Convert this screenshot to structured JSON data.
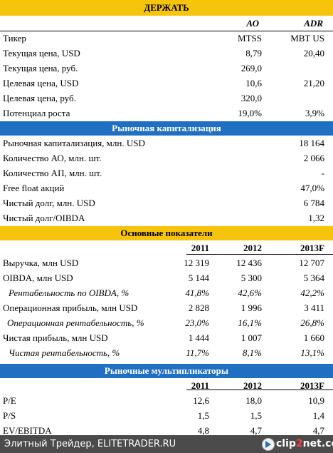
{
  "hold": {
    "title": "ДЕРЖАТЬ",
    "col_ao": "АО",
    "col_adr": "ADR",
    "rows": [
      {
        "label": "Тикер",
        "ao": "MTSS",
        "adr": "MBT US"
      },
      {
        "label": "Текущая цена, USD",
        "ao": "8,79",
        "adr": "20,40"
      },
      {
        "label": "Текущая цена, руб.",
        "ao": "269,0",
        "adr": ""
      },
      {
        "label": "Целевая цена, USD",
        "ao": "10,6",
        "adr": "21,20"
      },
      {
        "label": "Целевая цена, руб.",
        "ao": "320,0",
        "adr": ""
      },
      {
        "label": "Потенциал роста",
        "ao": "19,0%",
        "adr": "3,9%"
      }
    ]
  },
  "market_cap": {
    "title": "Рыночная капитализация",
    "rows": [
      {
        "label": "Рыночная капитализация, млн. USD",
        "value": "18 164"
      },
      {
        "label": "Количество АО, млн. шт.",
        "value": "2 066"
      },
      {
        "label": "Количество АП, млн. шт.",
        "value": "-"
      },
      {
        "label": "Free float акций",
        "value": "47,0%"
      },
      {
        "label": "Чистый долг, млн. USD",
        "value": "6 784"
      },
      {
        "label": "Чистый долг/OIBDA",
        "value": "1,32"
      }
    ]
  },
  "key_metrics": {
    "title": "Основные показатели",
    "years": [
      "2011",
      "2012",
      "2013F"
    ],
    "rows": [
      {
        "label": "Выручка, млн USD",
        "v": [
          "12 319",
          "12 436",
          "12 707"
        ]
      },
      {
        "label": "OIBDA, млн USD",
        "v": [
          "5 144",
          "5 300",
          "5 364"
        ]
      },
      {
        "label": "Рентабельность по OIBDA, %",
        "v": [
          "41,8%",
          "42,6%",
          "42,2%"
        ]
      },
      {
        "label": "Операционная прибыль, млн USD",
        "v": [
          "2 828",
          "1 996",
          "3 411"
        ]
      },
      {
        "label": "Операционная рентабельность, %",
        "v": [
          "23,0%",
          "16,1%",
          "26,8%"
        ]
      },
      {
        "label": "Чистая прибыль, млн USD",
        "v": [
          "1 444",
          "1 007",
          "1 660"
        ]
      },
      {
        "label": "Чистая рентабельность, %",
        "v": [
          "11,7%",
          "8,1%",
          "13,1%"
        ]
      }
    ]
  },
  "multiples": {
    "title": "Рыночные мультипликаторы",
    "years": [
      "2011",
      "2012",
      "2013F"
    ],
    "rows": [
      {
        "label": "P/E",
        "v": [
          "12,6",
          "18,0",
          "10,9"
        ]
      },
      {
        "label": "P/S",
        "v": [
          "1,5",
          "1,5",
          "1,4"
        ]
      },
      {
        "label": "EV/EBITDA",
        "v": [
          "4,8",
          "4,7",
          "4,7"
        ]
      }
    ]
  },
  "footer": {
    "source": "Элитный Трейдер, ELITETRADER.RU",
    "logo_part1": "clip",
    "logo_part2": "2",
    "logo_part3": "net.com"
  }
}
